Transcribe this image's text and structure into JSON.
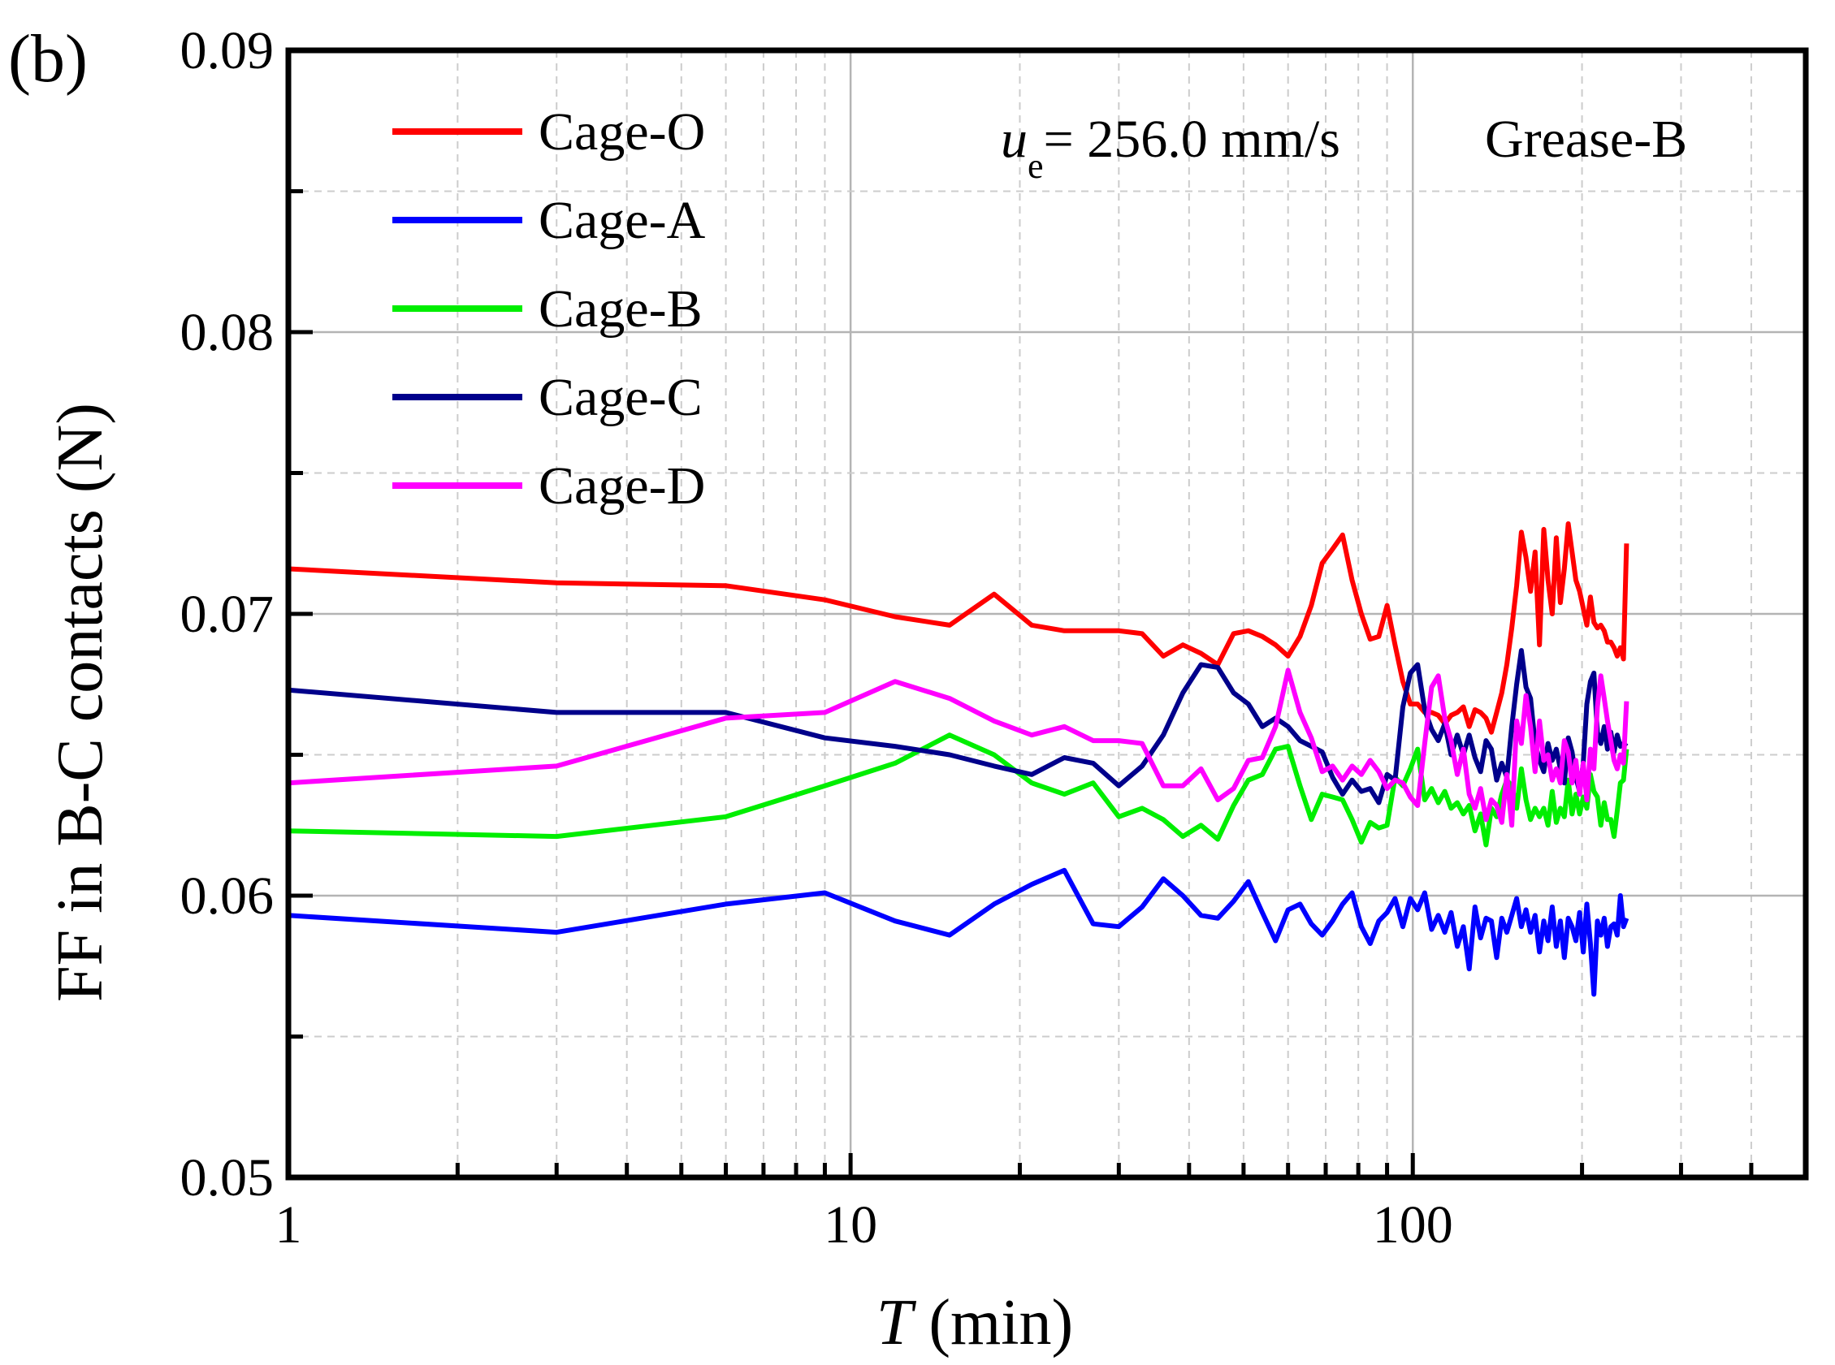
{
  "chart_data": {
    "type": "line",
    "panel_label": "(b)",
    "x_scale": "log",
    "xlim": [
      1,
      500
    ],
    "ylim": [
      0.05,
      0.09
    ],
    "grid": true,
    "xlabel": {
      "var": "T",
      "unit": " (min)"
    },
    "ylabel": "FF in B-C contacts (N)",
    "x_tick_labels": [
      {
        "value": 1,
        "label": "1"
      },
      {
        "value": 10,
        "label": "10"
      },
      {
        "value": 100,
        "label": "100"
      }
    ],
    "y_tick_labels": [
      {
        "value": 0.05,
        "label": "0.05"
      },
      {
        "value": 0.06,
        "label": "0.06"
      },
      {
        "value": 0.07,
        "label": "0.07"
      },
      {
        "value": 0.08,
        "label": "0.08"
      },
      {
        "value": 0.09,
        "label": "0.09"
      }
    ],
    "annotation": {
      "var": "u",
      "sub": "e",
      "text": "= 256.0 mm/s",
      "extra": "Grease-B"
    },
    "legend_position": "top-left",
    "series": [
      {
        "name": "Cage-O",
        "color": "#ff0000",
        "x": [
          1,
          3,
          6,
          9,
          12,
          15,
          18,
          21,
          24,
          27,
          30,
          33,
          36,
          39,
          42,
          45,
          48,
          51,
          54,
          57,
          60,
          63,
          66,
          69,
          72,
          75,
          78,
          81,
          84,
          87,
          90,
          93,
          96,
          99,
          102,
          105,
          108,
          111,
          114,
          117,
          120,
          123,
          126,
          129,
          132,
          135,
          138,
          141,
          144,
          147,
          150,
          153,
          156,
          159,
          162,
          165,
          168,
          171,
          174,
          177,
          180,
          183,
          186,
          189,
          192,
          195,
          198,
          201,
          204,
          207,
          210,
          213,
          216,
          219,
          222,
          225,
          228,
          231,
          234,
          237,
          240
        ],
        "y": [
          0.0716,
          0.0711,
          0.071,
          0.0705,
          0.0699,
          0.0696,
          0.0707,
          0.0696,
          0.0694,
          0.0694,
          0.0694,
          0.0693,
          0.0685,
          0.0689,
          0.0686,
          0.0682,
          0.0693,
          0.0694,
          0.0692,
          0.0689,
          0.0685,
          0.0692,
          0.0703,
          0.0718,
          0.0723,
          0.0728,
          0.0712,
          0.07,
          0.0691,
          0.0692,
          0.0703,
          0.0689,
          0.0676,
          0.0668,
          0.0668,
          0.0665,
          0.0665,
          0.0664,
          0.0661,
          0.0664,
          0.0665,
          0.0667,
          0.066,
          0.0666,
          0.0665,
          0.0663,
          0.0658,
          0.0665,
          0.0672,
          0.0682,
          0.0695,
          0.071,
          0.0729,
          0.072,
          0.0708,
          0.0722,
          0.0689,
          0.073,
          0.0712,
          0.07,
          0.0727,
          0.0704,
          0.0716,
          0.0732,
          0.0722,
          0.0712,
          0.0708,
          0.0702,
          0.0696,
          0.0706,
          0.0697,
          0.0695,
          0.0696,
          0.0694,
          0.069,
          0.069,
          0.0688,
          0.0685,
          0.0688,
          0.0684,
          0.0725
        ]
      },
      {
        "name": "Cage-A",
        "color": "#0000ff",
        "x": [
          1,
          3,
          6,
          9,
          12,
          15,
          18,
          21,
          24,
          27,
          30,
          33,
          36,
          39,
          42,
          45,
          48,
          51,
          54,
          57,
          60,
          63,
          66,
          69,
          72,
          75,
          78,
          81,
          84,
          87,
          90,
          93,
          96,
          99,
          102,
          105,
          108,
          111,
          114,
          117,
          120,
          123,
          126,
          129,
          132,
          135,
          138,
          141,
          144,
          147,
          150,
          153,
          156,
          159,
          162,
          165,
          168,
          171,
          174,
          177,
          180,
          183,
          186,
          189,
          192,
          195,
          198,
          201,
          204,
          207,
          210,
          213,
          216,
          219,
          222,
          225,
          228,
          231,
          234,
          237,
          240
        ],
        "y": [
          0.0593,
          0.0587,
          0.0597,
          0.0601,
          0.0591,
          0.0586,
          0.0597,
          0.0604,
          0.0609,
          0.059,
          0.0589,
          0.0596,
          0.0606,
          0.06,
          0.0593,
          0.0592,
          0.0598,
          0.0605,
          0.0594,
          0.0584,
          0.0595,
          0.0597,
          0.059,
          0.0586,
          0.0591,
          0.0597,
          0.0601,
          0.0589,
          0.0583,
          0.0591,
          0.0594,
          0.0599,
          0.0589,
          0.0599,
          0.0595,
          0.0601,
          0.0588,
          0.0593,
          0.0587,
          0.0594,
          0.0582,
          0.0589,
          0.0574,
          0.0596,
          0.0585,
          0.0592,
          0.0591,
          0.0578,
          0.0592,
          0.0587,
          0.0593,
          0.0599,
          0.0589,
          0.0595,
          0.0587,
          0.0593,
          0.058,
          0.0591,
          0.0584,
          0.0596,
          0.0582,
          0.0591,
          0.0578,
          0.0592,
          0.0589,
          0.0584,
          0.0594,
          0.058,
          0.0597,
          0.0583,
          0.0565,
          0.0591,
          0.0586,
          0.0592,
          0.0582,
          0.0589,
          0.059,
          0.0586,
          0.06,
          0.0589,
          0.0592
        ]
      },
      {
        "name": "Cage-B",
        "color": "#00ee00",
        "x": [
          1,
          3,
          6,
          9,
          12,
          15,
          18,
          21,
          24,
          27,
          30,
          33,
          36,
          39,
          42,
          45,
          48,
          51,
          54,
          57,
          60,
          63,
          66,
          69,
          72,
          75,
          78,
          81,
          84,
          87,
          90,
          93,
          96,
          99,
          102,
          105,
          108,
          111,
          114,
          117,
          120,
          123,
          126,
          129,
          132,
          135,
          138,
          141,
          144,
          147,
          150,
          153,
          156,
          159,
          162,
          165,
          168,
          171,
          174,
          177,
          180,
          183,
          186,
          189,
          192,
          195,
          198,
          201,
          204,
          207,
          210,
          213,
          216,
          219,
          222,
          225,
          228,
          231,
          234,
          237,
          240
        ],
        "y": [
          0.0623,
          0.0621,
          0.0628,
          0.0639,
          0.0647,
          0.0657,
          0.065,
          0.064,
          0.0636,
          0.064,
          0.0628,
          0.0631,
          0.0627,
          0.0621,
          0.0625,
          0.062,
          0.0632,
          0.0641,
          0.0643,
          0.0652,
          0.0653,
          0.0639,
          0.0627,
          0.0636,
          0.0635,
          0.0634,
          0.0627,
          0.0619,
          0.0626,
          0.0624,
          0.0625,
          0.0642,
          0.0639,
          0.0645,
          0.0652,
          0.0634,
          0.0638,
          0.0633,
          0.0637,
          0.0631,
          0.0633,
          0.0629,
          0.0632,
          0.0623,
          0.0629,
          0.0618,
          0.0631,
          0.0628,
          0.0636,
          0.0641,
          0.0639,
          0.0631,
          0.0645,
          0.0634,
          0.0627,
          0.0631,
          0.0628,
          0.0631,
          0.0625,
          0.0637,
          0.0626,
          0.0631,
          0.0628,
          0.0641,
          0.0629,
          0.0636,
          0.0629,
          0.0635,
          0.0631,
          0.0643,
          0.0637,
          0.0635,
          0.0625,
          0.0633,
          0.0627,
          0.0627,
          0.0621,
          0.063,
          0.064,
          0.0641,
          0.0652
        ]
      },
      {
        "name": "Cage-C",
        "color": "#00008b",
        "x": [
          1,
          3,
          6,
          9,
          12,
          15,
          18,
          21,
          24,
          27,
          30,
          33,
          36,
          39,
          42,
          45,
          48,
          51,
          54,
          57,
          60,
          63,
          66,
          69,
          72,
          75,
          78,
          81,
          84,
          87,
          90,
          93,
          96,
          99,
          102,
          105,
          108,
          111,
          114,
          117,
          120,
          123,
          126,
          129,
          132,
          135,
          138,
          141,
          144,
          147,
          150,
          153,
          156,
          159,
          162,
          165,
          168,
          171,
          174,
          177,
          180,
          183,
          186,
          189,
          192,
          195,
          198,
          201,
          204,
          207,
          210,
          213,
          216,
          219,
          222,
          225,
          228,
          231,
          234,
          237,
          240
        ],
        "y": [
          0.0673,
          0.0665,
          0.0665,
          0.0656,
          0.0653,
          0.065,
          0.0646,
          0.0643,
          0.0649,
          0.0647,
          0.0639,
          0.0646,
          0.0657,
          0.0672,
          0.0682,
          0.0681,
          0.0672,
          0.0668,
          0.066,
          0.0663,
          0.066,
          0.0655,
          0.0653,
          0.0651,
          0.0642,
          0.0636,
          0.0641,
          0.0637,
          0.0638,
          0.0633,
          0.0643,
          0.0641,
          0.0667,
          0.0679,
          0.0682,
          0.0666,
          0.0659,
          0.0655,
          0.0661,
          0.065,
          0.0657,
          0.065,
          0.0657,
          0.0649,
          0.0644,
          0.0655,
          0.0652,
          0.0641,
          0.0647,
          0.0642,
          0.066,
          0.0675,
          0.0687,
          0.0674,
          0.067,
          0.0654,
          0.0648,
          0.0644,
          0.0654,
          0.0648,
          0.0652,
          0.0645,
          0.064,
          0.0656,
          0.0651,
          0.0642,
          0.0637,
          0.0647,
          0.0668,
          0.0676,
          0.0679,
          0.0658,
          0.0654,
          0.066,
          0.0652,
          0.0658,
          0.0651,
          0.0657,
          0.0653,
          0.0654,
          0.0653
        ]
      },
      {
        "name": "Cage-D",
        "color": "#ff00ff",
        "x": [
          1,
          3,
          6,
          9,
          12,
          15,
          18,
          21,
          24,
          27,
          30,
          33,
          36,
          39,
          42,
          45,
          48,
          51,
          54,
          57,
          60,
          63,
          66,
          69,
          72,
          75,
          78,
          81,
          84,
          87,
          90,
          93,
          96,
          99,
          102,
          105,
          108,
          111,
          114,
          117,
          120,
          123,
          126,
          129,
          132,
          135,
          138,
          141,
          144,
          147,
          150,
          153,
          156,
          159,
          162,
          165,
          168,
          171,
          174,
          177,
          180,
          183,
          186,
          189,
          192,
          195,
          198,
          201,
          204,
          207,
          210,
          213,
          216,
          219,
          222,
          225,
          228,
          231,
          234,
          237,
          240
        ],
        "y": [
          0.064,
          0.0646,
          0.0663,
          0.0665,
          0.0676,
          0.067,
          0.0662,
          0.0657,
          0.066,
          0.0655,
          0.0655,
          0.0654,
          0.0639,
          0.0639,
          0.0645,
          0.0634,
          0.0638,
          0.0648,
          0.0649,
          0.066,
          0.068,
          0.0665,
          0.0656,
          0.0644,
          0.0646,
          0.0641,
          0.0646,
          0.0643,
          0.0648,
          0.0644,
          0.0638,
          0.0641,
          0.064,
          0.0635,
          0.0632,
          0.0654,
          0.0674,
          0.0678,
          0.0663,
          0.0655,
          0.0643,
          0.0652,
          0.0636,
          0.0631,
          0.0638,
          0.0627,
          0.0634,
          0.0632,
          0.0626,
          0.0643,
          0.0625,
          0.0662,
          0.0654,
          0.0671,
          0.066,
          0.0644,
          0.0662,
          0.0648,
          0.065,
          0.0641,
          0.0645,
          0.064,
          0.0655,
          0.0651,
          0.064,
          0.0648,
          0.0636,
          0.0647,
          0.0634,
          0.0652,
          0.0645,
          0.0667,
          0.0678,
          0.067,
          0.0662,
          0.0655,
          0.0648,
          0.0645,
          0.065,
          0.0647,
          0.0669
        ]
      }
    ]
  }
}
